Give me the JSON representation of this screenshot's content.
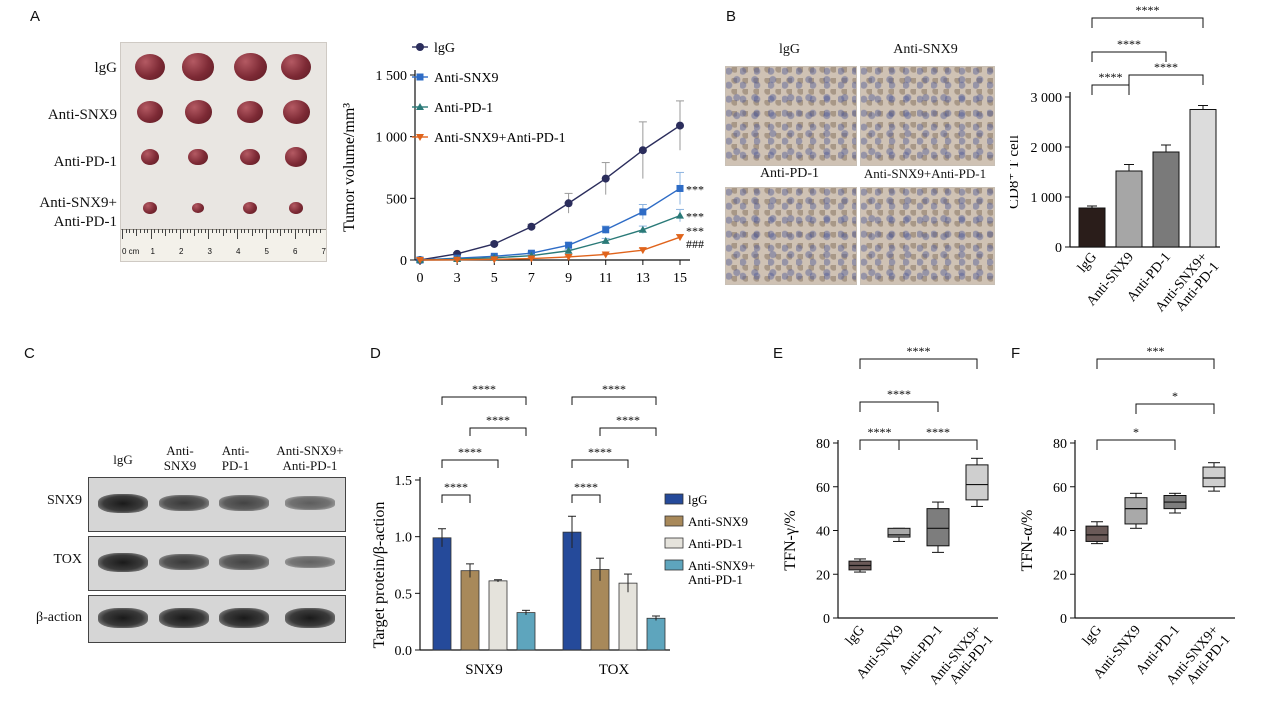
{
  "panels": {
    "A": "A",
    "B": "B",
    "C": "C",
    "D": "D",
    "E": "E",
    "F": "F"
  },
  "photo_A": {
    "row_labels": [
      "lgG",
      "Anti-SNX9",
      "Anti-PD-1",
      "Anti-SNX9+",
      "Anti-PD-1"
    ],
    "ruler_labels": [
      "0 cm",
      "1",
      "2",
      "3",
      "4",
      "5",
      "6",
      "7"
    ]
  },
  "ihc_B": {
    "labels": [
      "lgG",
      "Anti-SNX9",
      "Anti-PD-1",
      "Anti-SNX9+Anti-PD-1"
    ]
  },
  "wb_C": {
    "lanes": [
      "lgG",
      "Anti-\nSNX9",
      "Anti-\nPD-1",
      "Anti-SNX9+\nAnti-PD-1"
    ],
    "rows": [
      "SNX9",
      "TOX",
      "β-action"
    ],
    "band_intensity": {
      "SNX9": [
        1.0,
        0.7,
        0.6,
        0.35
      ],
      "TOX": [
        1.0,
        0.7,
        0.6,
        0.3
      ],
      "β-action": [
        1.0,
        1.0,
        1.0,
        1.0
      ]
    }
  },
  "colors": {
    "lgG_line": "#2b2d5c",
    "snx9_line": "#2e6cc6",
    "pd1_line": "#2a7a78",
    "combo_line": "#e0641c",
    "bar_B": [
      "#2a1d1a",
      "#a6a6a6",
      "#7a7a7a",
      "#dcdcdc"
    ],
    "bar_D": [
      "#254a9a",
      "#a8895a",
      "#e5e3dc",
      "#5ea5bd"
    ],
    "box": [
      "#6a5a58",
      "#a9a9a9",
      "#7d7d7d",
      "#cfcfcf"
    ]
  },
  "chart_data": [
    {
      "id": "A",
      "type": "line",
      "ylabel": "Tumor volume/mm³",
      "x": [
        0,
        3,
        5,
        7,
        9,
        11,
        13,
        15
      ],
      "ylim": [
        0,
        1500
      ],
      "yticks": [
        "0",
        "500",
        "1 000",
        "1 500"
      ],
      "series": [
        {
          "name": "lgG",
          "values": [
            0,
            50,
            130,
            270,
            460,
            660,
            890,
            1090
          ],
          "err": [
            0,
            10,
            15,
            20,
            80,
            130,
            230,
            200
          ]
        },
        {
          "name": "Anti-SNX9",
          "values": [
            0,
            15,
            30,
            55,
            120,
            245,
            390,
            580
          ],
          "err": [
            0,
            5,
            8,
            10,
            20,
            30,
            60,
            130
          ]
        },
        {
          "name": "Anti-PD-1",
          "values": [
            0,
            8,
            18,
            35,
            75,
            155,
            245,
            360
          ],
          "err": [
            0,
            3,
            5,
            8,
            12,
            20,
            30,
            50
          ]
        },
        {
          "name": "Anti-SNX9+Anti-PD-1",
          "values": [
            0,
            2,
            5,
            12,
            25,
            45,
            80,
            185
          ],
          "err": [
            0,
            1,
            2,
            4,
            6,
            8,
            15,
            20
          ]
        }
      ],
      "annotations": [
        "***",
        "***",
        "***",
        "###"
      ]
    },
    {
      "id": "B",
      "type": "bar",
      "ylabel": "CD8⁺ T cell",
      "categories": [
        "lgG",
        "Anti-SNX9",
        "Anti-PD-1",
        "Anti-SNX9+\nAnti-PD-1"
      ],
      "values": [
        780,
        1520,
        1900,
        2750
      ],
      "err": [
        40,
        130,
        140,
        80
      ],
      "ylim": [
        0,
        3000
      ],
      "yticks": [
        "0",
        "1 000",
        "2 000",
        "3 000"
      ],
      "significance": [
        "****",
        "****",
        "****",
        "****"
      ]
    },
    {
      "id": "D",
      "type": "bar",
      "ylabel": "Target protein/β-action",
      "categories": [
        "SNX9",
        "TOX"
      ],
      "series": [
        {
          "name": "lgG",
          "values": [
            0.99,
            1.04
          ],
          "err": [
            0.08,
            0.14
          ]
        },
        {
          "name": "Anti-SNX9",
          "values": [
            0.7,
            0.71
          ],
          "err": [
            0.06,
            0.1
          ]
        },
        {
          "name": "Anti-PD-1",
          "values": [
            0.61,
            0.59
          ],
          "err": [
            0.01,
            0.08
          ]
        },
        {
          "name": "Anti-SNX9+\nAnti-PD-1",
          "values": [
            0.33,
            0.28
          ],
          "err": [
            0.02,
            0.02
          ]
        }
      ],
      "ylim": [
        0,
        1.5
      ],
      "yticks": [
        "0.0",
        "0.5",
        "1.0",
        "1.5"
      ],
      "significance": [
        "****",
        "****",
        "****"
      ]
    },
    {
      "id": "E",
      "type": "box",
      "ylabel": "TFN-γ/%",
      "categories": [
        "lgG",
        "Anti-SNX9",
        "Anti-PD-1",
        "Anti-SNX9+\nAnti-PD-1"
      ],
      "boxes": [
        {
          "min": 21,
          "q1": 22,
          "median": 24,
          "q3": 26,
          "max": 27
        },
        {
          "min": 35,
          "q1": 37,
          "median": 38,
          "q3": 41,
          "max": 41
        },
        {
          "min": 30,
          "q1": 33,
          "median": 41,
          "q3": 50,
          "max": 53
        },
        {
          "min": 51,
          "q1": 54,
          "median": 61,
          "q3": 70,
          "max": 73
        }
      ],
      "ylim": [
        0,
        80
      ],
      "yticks": [
        "0",
        "20",
        "40",
        "60",
        "80"
      ],
      "significance": [
        "****",
        "****",
        "****",
        "****"
      ]
    },
    {
      "id": "F",
      "type": "box",
      "ylabel": "TFN-α/%",
      "categories": [
        "lgG",
        "Anti-SNX9",
        "Anti-PD-1",
        "Anti-SNX9+\nAnti-PD-1"
      ],
      "boxes": [
        {
          "min": 34,
          "q1": 35,
          "median": 38,
          "q3": 42,
          "max": 44
        },
        {
          "min": 41,
          "q1": 43,
          "median": 50,
          "q3": 55,
          "max": 57
        },
        {
          "min": 48,
          "q1": 50,
          "median": 53,
          "q3": 56,
          "max": 57
        },
        {
          "min": 58,
          "q1": 60,
          "median": 64,
          "q3": 69,
          "max": 71
        }
      ],
      "ylim": [
        0,
        80
      ],
      "yticks": [
        "0",
        "20",
        "40",
        "60",
        "80"
      ],
      "significance": [
        "***",
        "*",
        "*"
      ]
    }
  ]
}
